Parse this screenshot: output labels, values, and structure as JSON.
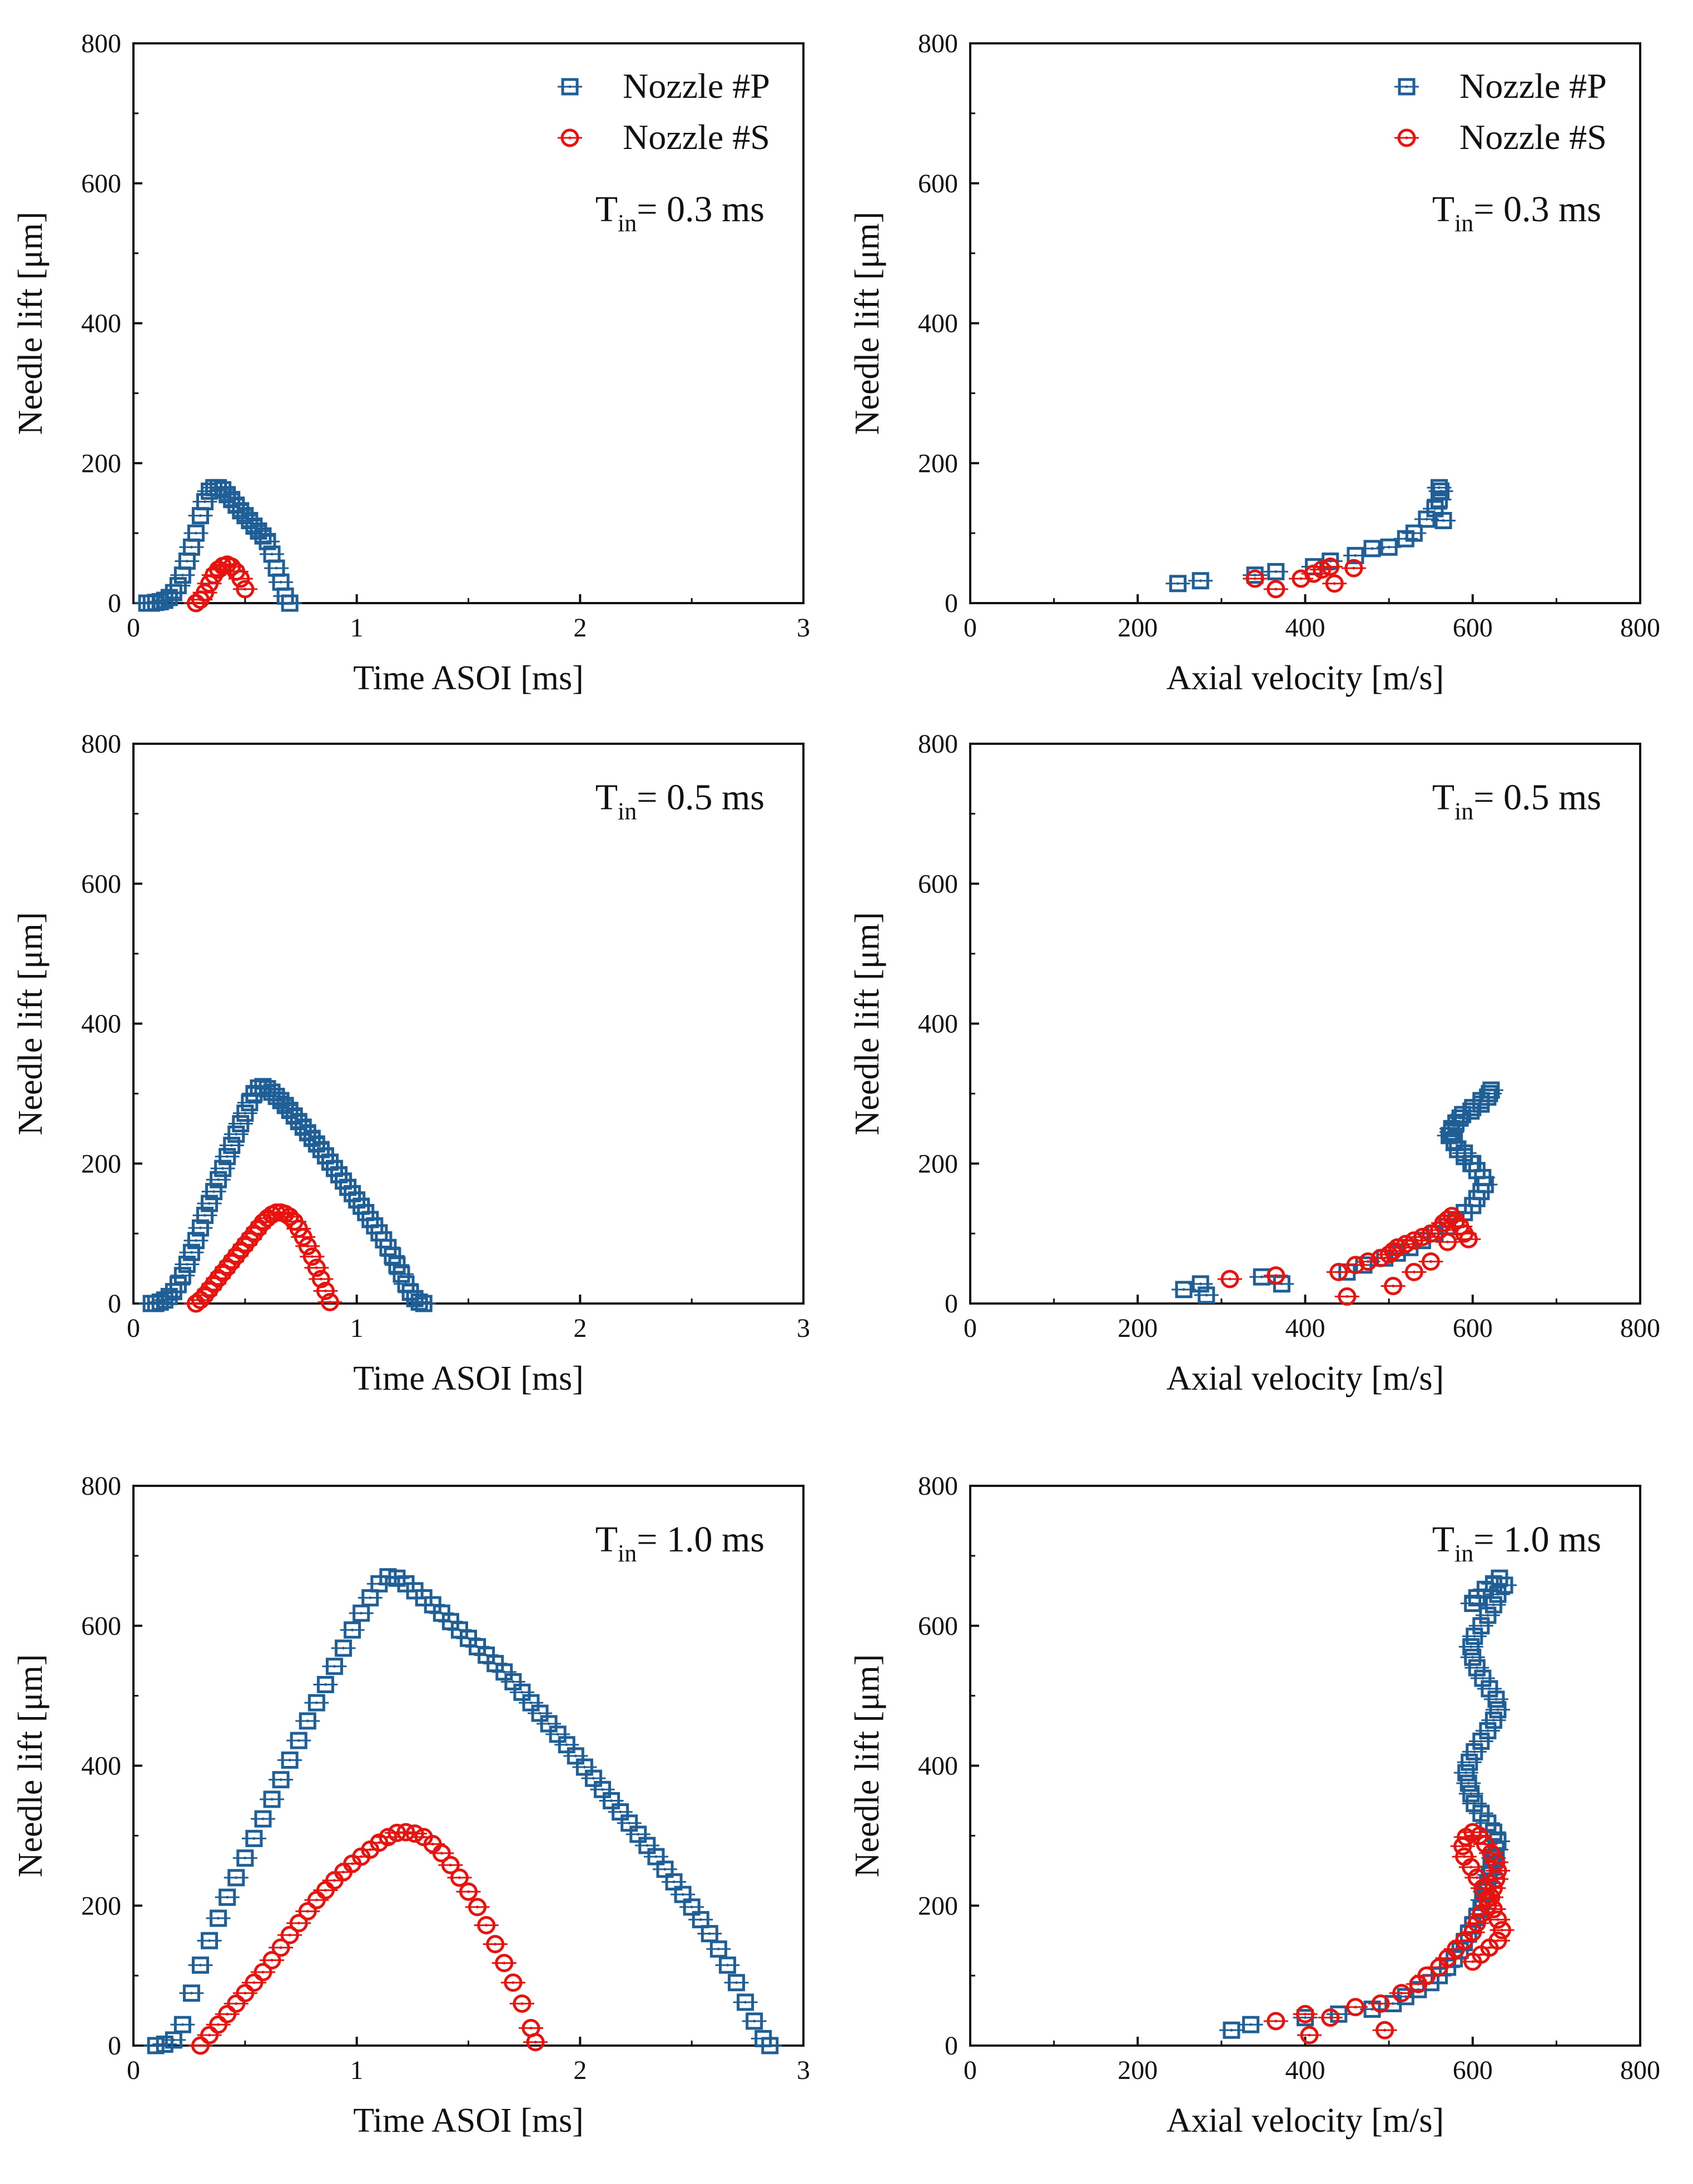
{
  "colors": {
    "p": "#1f5f96",
    "s": "#e8130f",
    "axis": "#111111"
  },
  "legend": {
    "p_label": "Nozzle #P",
    "s_label": "Nozzle #S",
    "p_marker": "square",
    "s_marker": "circle-dot"
  },
  "chart_data": [
    {
      "id": "lift-time-0.3",
      "type": "scatter",
      "xlabel": "Time ASOI [ms]",
      "ylabel": "Needle lift [μm]",
      "xlim": [
        0,
        3
      ],
      "ylim": [
        0,
        800
      ],
      "xticks": [
        "0",
        "1",
        "2",
        "3"
      ],
      "yticks": [
        "0",
        "200",
        "400",
        "600",
        "800"
      ],
      "legend_shown": true,
      "annotation": {
        "base": "T",
        "sub": "in",
        "text": "= 0.3 ms"
      },
      "series": [
        {
          "name": "Nozzle #P",
          "x": [
            0.06,
            0.08,
            0.1,
            0.12,
            0.14,
            0.16,
            0.18,
            0.2,
            0.22,
            0.24,
            0.26,
            0.28,
            0.3,
            0.32,
            0.34,
            0.36,
            0.38,
            0.4,
            0.42,
            0.44,
            0.46,
            0.48,
            0.5,
            0.52,
            0.54,
            0.56,
            0.58,
            0.6,
            0.62,
            0.64,
            0.66,
            0.68,
            0.7
          ],
          "y": [
            0,
            0,
            1,
            2,
            4,
            8,
            15,
            25,
            40,
            60,
            80,
            100,
            125,
            145,
            160,
            165,
            165,
            162,
            155,
            148,
            140,
            132,
            125,
            118,
            110,
            103,
            96,
            88,
            70,
            50,
            30,
            10,
            0
          ]
        },
        {
          "name": "Nozzle #S",
          "x": [
            0.28,
            0.3,
            0.32,
            0.34,
            0.36,
            0.38,
            0.4,
            0.42,
            0.44,
            0.46,
            0.48,
            0.5
          ],
          "y": [
            0,
            5,
            15,
            28,
            40,
            48,
            53,
            55,
            52,
            45,
            35,
            20
          ]
        }
      ]
    },
    {
      "id": "lift-vel-0.3",
      "type": "scatter",
      "xlabel": "Axial velocity [m/s]",
      "ylabel": "Needle lift [μm]",
      "xlim": [
        0,
        800
      ],
      "ylim": [
        0,
        800
      ],
      "xticks": [
        "0",
        "200",
        "400",
        "600",
        "800"
      ],
      "yticks": [
        "0",
        "200",
        "400",
        "600",
        "800"
      ],
      "legend_shown": true,
      "annotation": {
        "base": "T",
        "sub": "in",
        "text": "= 0.3 ms"
      },
      "series": [
        {
          "name": "Nozzle #P",
          "x": [
            248,
            275,
            340,
            365,
            410,
            430,
            460,
            480,
            500,
            520,
            530,
            545,
            555,
            560,
            562,
            560,
            565
          ],
          "y": [
            28,
            32,
            40,
            45,
            52,
            60,
            68,
            78,
            80,
            92,
            100,
            120,
            135,
            148,
            160,
            165,
            118
          ]
        },
        {
          "name": "Nozzle #S",
          "x": [
            340,
            365,
            395,
            410,
            420,
            430,
            435,
            458
          ],
          "y": [
            35,
            20,
            35,
            42,
            48,
            52,
            28,
            50
          ]
        }
      ]
    },
    {
      "id": "lift-time-0.5",
      "type": "scatter",
      "xlabel": "Time ASOI [ms]",
      "ylabel": "Needle lift [μm]",
      "xlim": [
        0,
        3
      ],
      "ylim": [
        0,
        800
      ],
      "xticks": [
        "0",
        "1",
        "2",
        "3"
      ],
      "yticks": [
        "0",
        "200",
        "400",
        "600",
        "800"
      ],
      "legend_shown": false,
      "annotation": {
        "base": "T",
        "sub": "in",
        "text": "= 0.5 ms"
      },
      "series": [
        {
          "name": "Nozzle #P",
          "x": [
            0.08,
            0.1,
            0.12,
            0.14,
            0.16,
            0.18,
            0.2,
            0.22,
            0.24,
            0.26,
            0.28,
            0.3,
            0.32,
            0.34,
            0.36,
            0.38,
            0.4,
            0.42,
            0.44,
            0.46,
            0.48,
            0.5,
            0.52,
            0.54,
            0.56,
            0.58,
            0.6,
            0.62,
            0.64,
            0.66,
            0.68,
            0.7,
            0.72,
            0.74,
            0.76,
            0.78,
            0.8,
            0.82,
            0.84,
            0.86,
            0.88,
            0.9,
            0.92,
            0.94,
            0.96,
            0.98,
            1.0,
            1.02,
            1.04,
            1.06,
            1.08,
            1.1,
            1.12,
            1.14,
            1.16,
            1.18,
            1.2,
            1.22,
            1.24,
            1.26,
            1.28,
            1.3
          ],
          "y": [
            0,
            0,
            2,
            5,
            10,
            17,
            27,
            40,
            56,
            73,
            90,
            108,
            126,
            143,
            160,
            177,
            193,
            210,
            226,
            242,
            257,
            272,
            287,
            300,
            308,
            310,
            307,
            302,
            296,
            290,
            283,
            276,
            268,
            260,
            252,
            244,
            236,
            228,
            220,
            211,
            202,
            193,
            184,
            175,
            166,
            157,
            148,
            139,
            130,
            120,
            111,
            101,
            91,
            80,
            68,
            55,
            42,
            28,
            16,
            7,
            2,
            0
          ]
        },
        {
          "name": "Nozzle #S",
          "x": [
            0.28,
            0.3,
            0.32,
            0.34,
            0.36,
            0.38,
            0.4,
            0.42,
            0.44,
            0.46,
            0.48,
            0.5,
            0.52,
            0.54,
            0.56,
            0.58,
            0.6,
            0.62,
            0.64,
            0.66,
            0.68,
            0.7,
            0.72,
            0.74,
            0.76,
            0.78,
            0.8,
            0.82,
            0.84,
            0.86,
            0.88
          ],
          "y": [
            0,
            5,
            12,
            20,
            28,
            36,
            44,
            52,
            60,
            68,
            76,
            84,
            92,
            100,
            108,
            116,
            122,
            127,
            130,
            130,
            128,
            124,
            117,
            107,
            95,
            82,
            67,
            51,
            35,
            18,
            2
          ]
        }
      ]
    },
    {
      "id": "lift-vel-0.5",
      "type": "scatter",
      "xlabel": "Axial velocity [m/s]",
      "ylabel": "Needle lift [μm]",
      "xlim": [
        0,
        800
      ],
      "ylim": [
        0,
        800
      ],
      "xticks": [
        "0",
        "200",
        "400",
        "600",
        "800"
      ],
      "yticks": [
        "0",
        "200",
        "400",
        "600",
        "800"
      ],
      "legend_shown": false,
      "annotation": {
        "base": "T",
        "sub": "in",
        "text": "= 0.5 ms"
      },
      "series": [
        {
          "name": "Nozzle #P",
          "x": [
            255,
            275,
            282,
            348,
            372,
            450,
            470,
            495,
            510,
            525,
            540,
            555,
            570,
            580,
            590,
            600,
            605,
            610,
            615,
            612,
            605,
            598,
            590,
            582,
            578,
            575,
            580,
            588,
            600,
            610,
            620,
            622,
            618,
            610,
            598,
            585,
            575,
            572,
            578,
            590,
            600
          ],
          "y": [
            20,
            28,
            12,
            38,
            28,
            45,
            55,
            65,
            72,
            80,
            90,
            100,
            110,
            120,
            130,
            140,
            150,
            160,
            170,
            180,
            190,
            200,
            210,
            220,
            232,
            245,
            258,
            270,
            280,
            290,
            300,
            305,
            295,
            285,
            275,
            265,
            250,
            240,
            230,
            215,
            200
          ]
        },
        {
          "name": "Nozzle #S",
          "x": [
            310,
            365,
            440,
            450,
            460,
            475,
            490,
            500,
            505,
            510,
            520,
            530,
            540,
            550,
            560,
            565,
            570,
            575,
            580,
            585,
            590,
            595,
            570,
            550,
            530,
            505
          ],
          "y": [
            35,
            40,
            45,
            10,
            55,
            60,
            65,
            70,
            75,
            80,
            85,
            90,
            95,
            100,
            105,
            115,
            120,
            125,
            118,
            110,
            100,
            92,
            88,
            60,
            45,
            25
          ]
        }
      ]
    },
    {
      "id": "lift-time-1.0",
      "type": "scatter",
      "xlabel": "Time ASOI [ms]",
      "ylabel": "Needle lift [μm]",
      "xlim": [
        0,
        3
      ],
      "ylim": [
        0,
        800
      ],
      "xticks": [
        "0",
        "1",
        "2",
        "3"
      ],
      "yticks": [
        "0",
        "200",
        "400",
        "600",
        "800"
      ],
      "legend_shown": false,
      "annotation": {
        "base": "T",
        "sub": "in",
        "text": "= 1.0 ms"
      },
      "series": [
        {
          "name": "Nozzle #P",
          "x": [
            0.1,
            0.14,
            0.18,
            0.22,
            0.26,
            0.3,
            0.34,
            0.38,
            0.42,
            0.46,
            0.5,
            0.54,
            0.58,
            0.62,
            0.66,
            0.7,
            0.74,
            0.78,
            0.82,
            0.86,
            0.9,
            0.94,
            0.98,
            1.02,
            1.06,
            1.1,
            1.14,
            1.18,
            1.22,
            1.26,
            1.3,
            1.34,
            1.38,
            1.42,
            1.46,
            1.5,
            1.54,
            1.58,
            1.62,
            1.66,
            1.7,
            1.74,
            1.78,
            1.82,
            1.86,
            1.9,
            1.94,
            1.98,
            2.02,
            2.06,
            2.1,
            2.14,
            2.18,
            2.22,
            2.26,
            2.3,
            2.34,
            2.38,
            2.42,
            2.46,
            2.5,
            2.54,
            2.58,
            2.62,
            2.66,
            2.7,
            2.74,
            2.78,
            2.82,
            2.85
          ],
          "y": [
            0,
            2,
            8,
            30,
            75,
            115,
            150,
            182,
            212,
            240,
            268,
            296,
            324,
            352,
            380,
            408,
            436,
            464,
            490,
            516,
            542,
            568,
            594,
            618,
            640,
            660,
            670,
            668,
            660,
            650,
            640,
            630,
            618,
            606,
            594,
            582,
            570,
            558,
            546,
            534,
            520,
            505,
            490,
            475,
            460,
            445,
            430,
            414,
            398,
            382,
            366,
            350,
            334,
            318,
            302,
            286,
            270,
            252,
            234,
            216,
            198,
            180,
            160,
            138,
            115,
            90,
            62,
            35,
            10,
            0
          ]
        },
        {
          "name": "Nozzle #S",
          "x": [
            0.3,
            0.34,
            0.38,
            0.42,
            0.46,
            0.5,
            0.54,
            0.58,
            0.62,
            0.66,
            0.7,
            0.74,
            0.78,
            0.82,
            0.86,
            0.9,
            0.94,
            0.98,
            1.02,
            1.06,
            1.1,
            1.14,
            1.18,
            1.22,
            1.26,
            1.3,
            1.34,
            1.38,
            1.42,
            1.46,
            1.5,
            1.54,
            1.58,
            1.62,
            1.66,
            1.7,
            1.74,
            1.78,
            1.8
          ],
          "y": [
            0,
            15,
            30,
            45,
            60,
            75,
            90,
            105,
            122,
            140,
            158,
            175,
            192,
            208,
            222,
            236,
            248,
            260,
            270,
            280,
            290,
            298,
            304,
            305,
            303,
            298,
            288,
            275,
            258,
            240,
            220,
            198,
            172,
            145,
            118,
            90,
            60,
            25,
            5
          ]
        }
      ]
    },
    {
      "id": "lift-vel-1.0",
      "type": "scatter",
      "xlabel": "Axial velocity [m/s]",
      "ylabel": "Needle lift [μm]",
      "xlim": [
        0,
        800
      ],
      "ylim": [
        0,
        800
      ],
      "xticks": [
        "0",
        "200",
        "400",
        "600",
        "800"
      ],
      "yticks": [
        "0",
        "200",
        "400",
        "600",
        "800"
      ],
      "legend_shown": false,
      "annotation": {
        "base": "T",
        "sub": "in",
        "text": "= 1.0 ms"
      },
      "series": [
        {
          "name": "Nozzle #P",
          "x": [
            312,
            335,
            400,
            440,
            480,
            505,
            520,
            535,
            550,
            560,
            570,
            578,
            585,
            590,
            595,
            600,
            605,
            610,
            612,
            615,
            618,
            620,
            622,
            625,
            628,
            630,
            625,
            618,
            610,
            602,
            598,
            595,
            592,
            596,
            602,
            610,
            618,
            625,
            630,
            628,
            620,
            612,
            605,
            600,
            598,
            602,
            610,
            618,
            625,
            630,
            638,
            632,
            625,
            615,
            605,
            600
          ],
          "y": [
            22,
            30,
            40,
            45,
            52,
            60,
            70,
            80,
            90,
            100,
            112,
            124,
            136,
            148,
            160,
            172,
            184,
            196,
            208,
            220,
            232,
            244,
            256,
            268,
            280,
            292,
            305,
            318,
            332,
            346,
            360,
            375,
            390,
            405,
            420,
            435,
            450,
            465,
            480,
            495,
            510,
            525,
            540,
            555,
            570,
            585,
            600,
            615,
            630,
            645,
            658,
            668,
            660,
            652,
            640,
            632
          ]
        },
        {
          "name": "Nozzle #S",
          "x": [
            365,
            400,
            405,
            430,
            460,
            490,
            495,
            515,
            535,
            545,
            560,
            570,
            580,
            590,
            600,
            605,
            610,
            618,
            622,
            625,
            628,
            630,
            628,
            622,
            615,
            608,
            600,
            592,
            588,
            590,
            598,
            605,
            612,
            618,
            625,
            630,
            635,
            630,
            620,
            610,
            600
          ],
          "y": [
            35,
            45,
            15,
            40,
            55,
            60,
            22,
            75,
            88,
            100,
            112,
            125,
            138,
            150,
            162,
            175,
            188,
            200,
            212,
            225,
            238,
            250,
            262,
            275,
            288,
            300,
            305,
            298,
            285,
            270,
            255,
            240,
            225,
            210,
            195,
            180,
            165,
            150,
            140,
            130,
            120
          ]
        }
      ]
    }
  ]
}
